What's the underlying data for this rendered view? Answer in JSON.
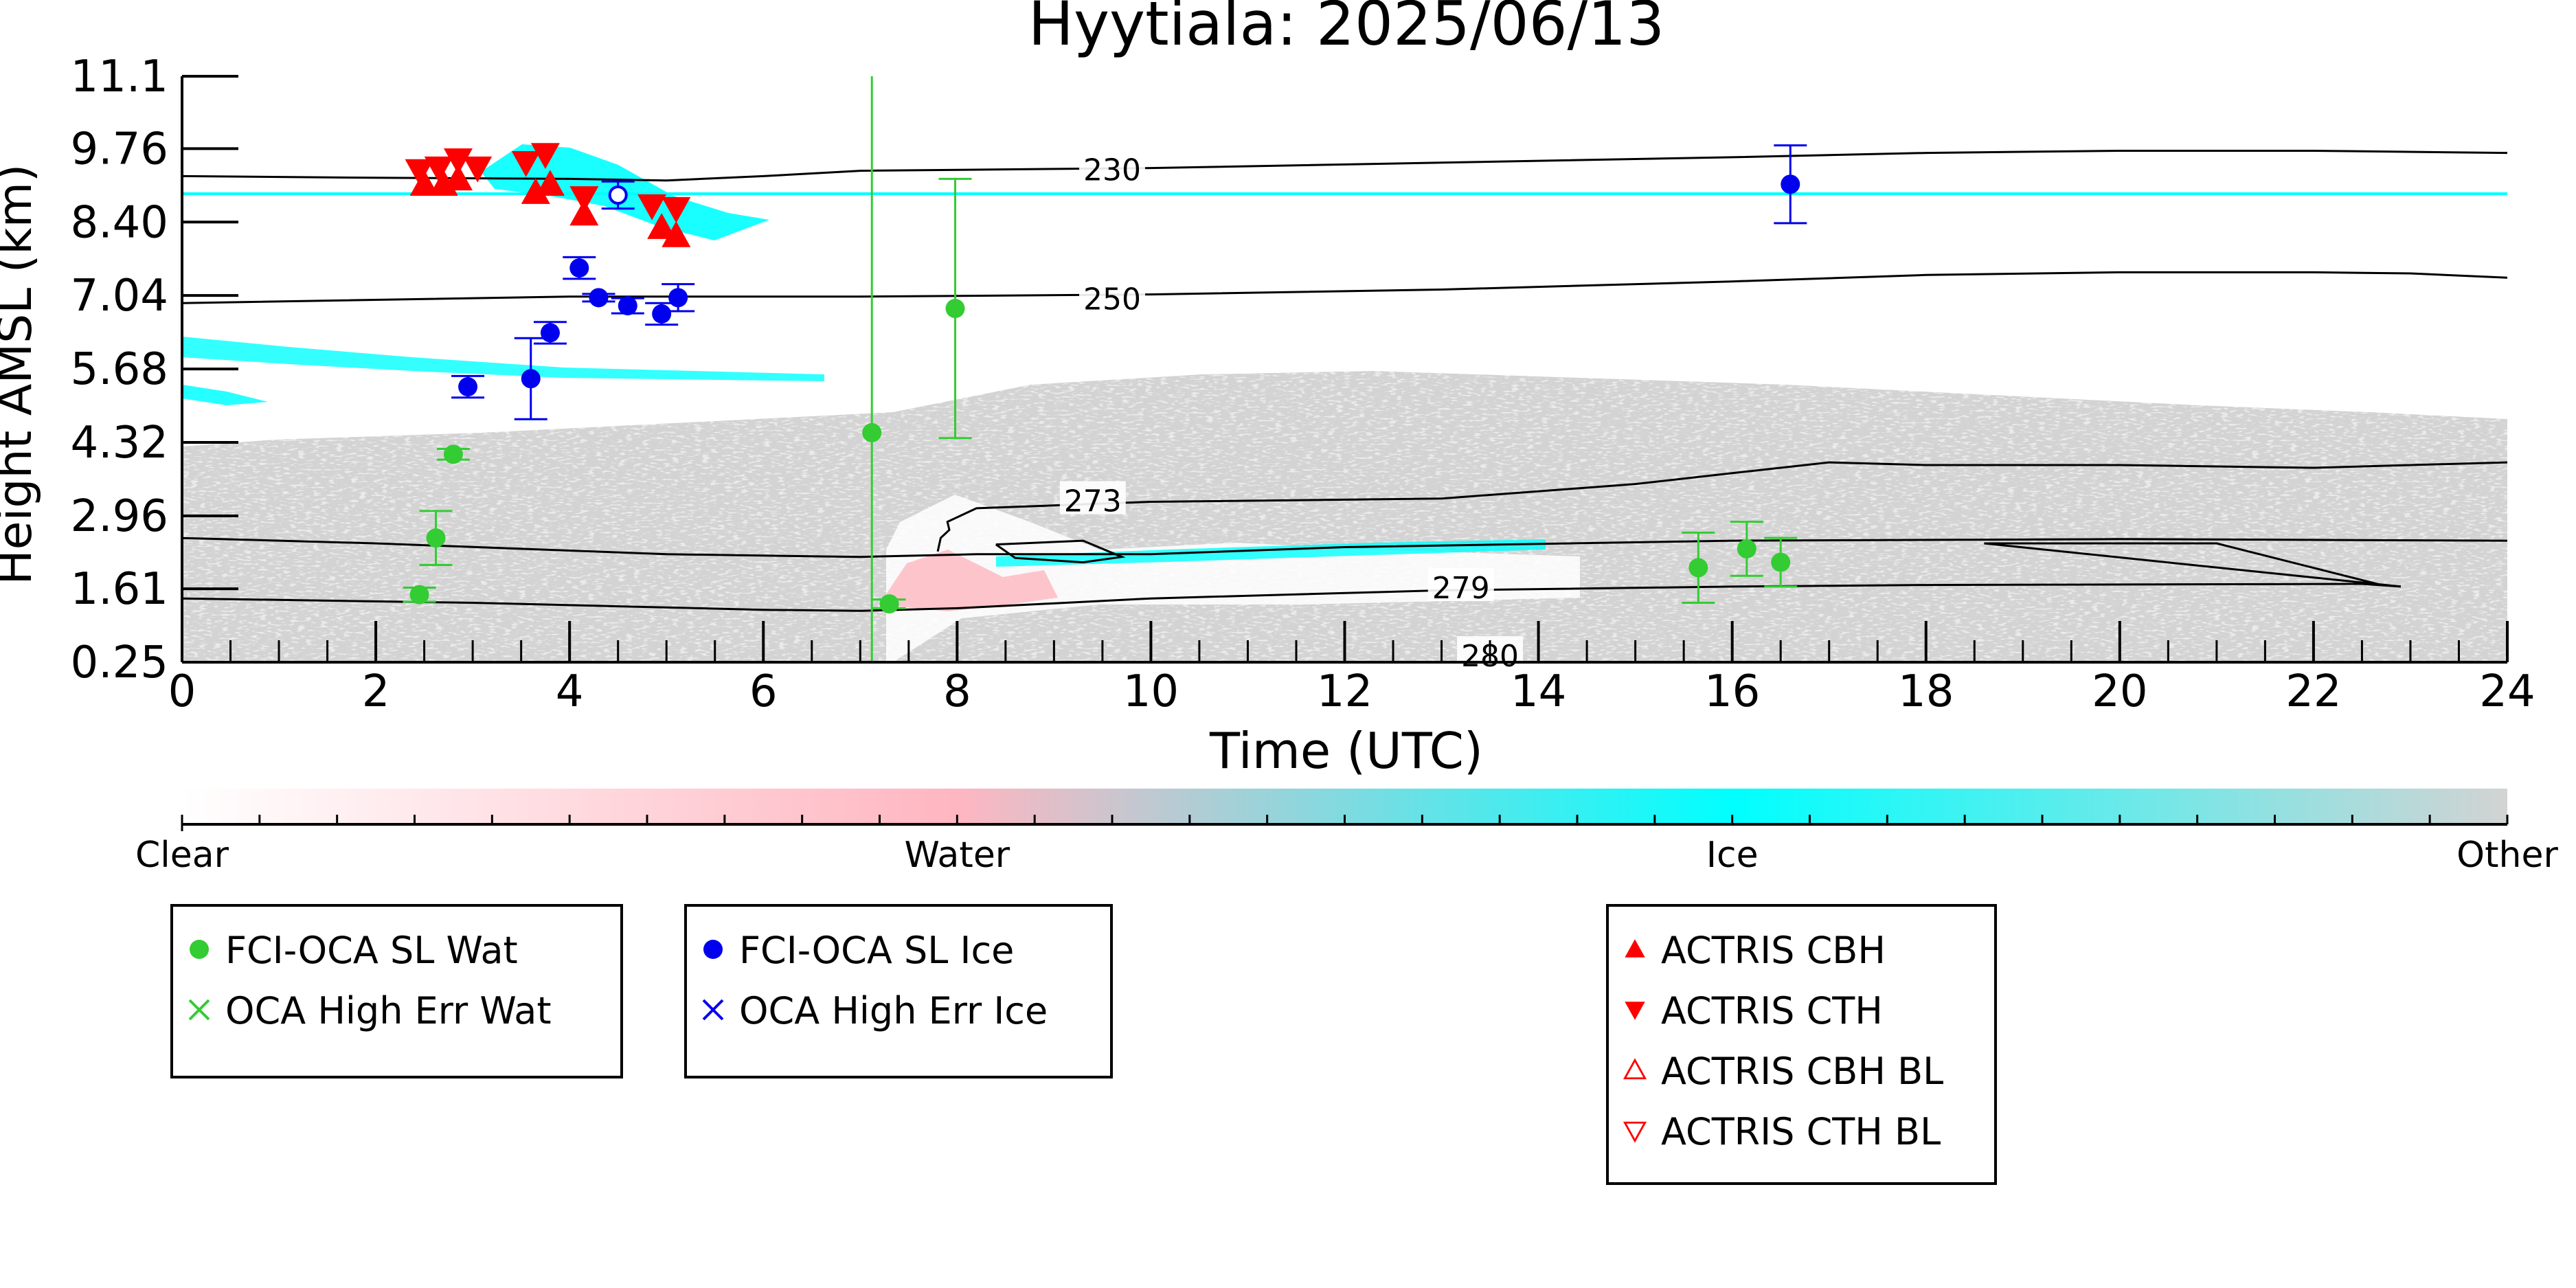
{
  "chart_data": {
    "type": "scatter",
    "title": "Hyytiala: 2025/06/13",
    "xlabel": "Time (UTC)",
    "ylabel": "Height AMSL (km)",
    "xlim": [
      0,
      24
    ],
    "ylim": [
      0.25,
      11.1
    ],
    "xticks": [
      0,
      2,
      4,
      6,
      8,
      10,
      12,
      14,
      16,
      18,
      20,
      22,
      24
    ],
    "yticks": [
      "0.25",
      "1.61",
      "2.96",
      "4.32",
      "5.68",
      "7.04",
      "8.40",
      "9.76",
      "11.1"
    ],
    "background": "cloud-phase classification field (clear / water / ice / other)",
    "colorbar": {
      "labels": [
        "Clear",
        "Water",
        "Ice",
        "Other"
      ],
      "colors": [
        "#ffffff",
        "#ffb6c1",
        "#00ffff",
        "#d3d3d3"
      ]
    },
    "temperature_contours": [
      {
        "label": "230",
        "label_x": 9.6,
        "label_y": 9.35,
        "points": [
          [
            0,
            9.25
          ],
          [
            2,
            9.22
          ],
          [
            4,
            9.2
          ],
          [
            5,
            9.17
          ],
          [
            6,
            9.25
          ],
          [
            7,
            9.35
          ],
          [
            10,
            9.4
          ],
          [
            13,
            9.5
          ],
          [
            16,
            9.6
          ],
          [
            18,
            9.68
          ],
          [
            20,
            9.72
          ],
          [
            22,
            9.72
          ],
          [
            24,
            9.68
          ]
        ]
      },
      {
        "label": "250",
        "label_x": 9.6,
        "label_y": 6.96,
        "points": [
          [
            0,
            6.9
          ],
          [
            4,
            7.02
          ],
          [
            7,
            7.02
          ],
          [
            10,
            7.06
          ],
          [
            13,
            7.15
          ],
          [
            16,
            7.3
          ],
          [
            18,
            7.42
          ],
          [
            20,
            7.47
          ],
          [
            22,
            7.47
          ],
          [
            23,
            7.45
          ],
          [
            24,
            7.37
          ]
        ]
      },
      {
        "label": "273",
        "label_x": 9.4,
        "label_y": 3.22,
        "points": [
          [
            7.8,
            2.3
          ],
          [
            7.83,
            2.55
          ],
          [
            7.92,
            2.7
          ],
          [
            7.9,
            2.85
          ],
          [
            8.2,
            3.1
          ],
          [
            10,
            3.22
          ],
          [
            13,
            3.28
          ],
          [
            15,
            3.55
          ],
          [
            16,
            3.75
          ],
          [
            17,
            3.95
          ],
          [
            18,
            3.9
          ],
          [
            20,
            3.9
          ],
          [
            22,
            3.85
          ],
          [
            23,
            3.9
          ],
          [
            24,
            3.95
          ]
        ]
      },
      {
        "label": "279",
        "label_x": 13.2,
        "label_y": 1.61,
        "points": [
          [
            0,
            1.43
          ],
          [
            3,
            1.35
          ],
          [
            6,
            1.22
          ],
          [
            7,
            1.2
          ],
          [
            8,
            1.25
          ],
          [
            10,
            1.43
          ],
          [
            13,
            1.58
          ],
          [
            16,
            1.65
          ],
          [
            18,
            1.68
          ],
          [
            22.5,
            1.7
          ],
          [
            22.9,
            1.65
          ]
        ]
      },
      {
        "label": "",
        "label_x": 0,
        "label_y": 0,
        "points": [
          [
            0,
            2.55
          ],
          [
            2,
            2.45
          ],
          [
            5,
            2.25
          ],
          [
            7,
            2.2
          ],
          [
            8.2,
            2.25
          ],
          [
            10,
            2.25
          ],
          [
            12,
            2.38
          ],
          [
            16,
            2.5
          ],
          [
            20,
            2.53
          ],
          [
            24,
            2.5
          ]
        ]
      },
      {
        "label": "280",
        "label_x": 13.5,
        "label_y": 0.35,
        "points": []
      }
    ],
    "contour_loops": [
      {
        "points": [
          [
            8.4,
            2.43
          ],
          [
            9.3,
            2.5
          ],
          [
            9.7,
            2.2
          ],
          [
            9.3,
            2.1
          ],
          [
            8.6,
            2.18
          ],
          [
            8.4,
            2.43
          ]
        ]
      },
      {
        "points": [
          [
            18.6,
            2.45
          ],
          [
            21,
            2.45
          ],
          [
            22.7,
            1.68
          ],
          [
            22.9,
            1.65
          ],
          [
            18.6,
            2.45
          ]
        ]
      }
    ],
    "series": [
      {
        "name": "FCI-OCA SL Wat",
        "color": "#33cc33",
        "marker": "filled-circle",
        "points": [
          {
            "x": 2.45,
            "y": 1.5,
            "err": 0.13
          },
          {
            "x": 2.62,
            "y": 2.55,
            "err": 0.5
          },
          {
            "x": 2.8,
            "y": 4.1,
            "err": 0.1
          },
          {
            "x": 7.12,
            "y": 4.5,
            "err": 0
          },
          {
            "x": 7.3,
            "y": 1.33,
            "err": 0.08
          },
          {
            "x": 7.98,
            "y": 6.8,
            "err": 2.4
          },
          {
            "x": 15.65,
            "y": 2.0,
            "err": 0.65
          },
          {
            "x": 16.15,
            "y": 2.35,
            "err": 0.5
          },
          {
            "x": 16.5,
            "y": 2.1,
            "err": 0.45
          }
        ]
      },
      {
        "name": "OCA High Err Wat",
        "color": "#33cc33",
        "marker": "x",
        "points": []
      },
      {
        "name": "FCI-OCA SL Ice",
        "color": "#0000ee",
        "marker": "filled-circle",
        "points": [
          {
            "x": 2.95,
            "y": 5.35,
            "err": 0.2
          },
          {
            "x": 3.6,
            "y": 5.5,
            "err": 0.75
          },
          {
            "x": 3.8,
            "y": 6.35,
            "err": 0.2
          },
          {
            "x": 4.1,
            "y": 7.55,
            "err": 0.2
          },
          {
            "x": 4.3,
            "y": 7.0,
            "err": 0.07
          },
          {
            "x": 4.6,
            "y": 6.85,
            "err": 0.14
          },
          {
            "x": 4.95,
            "y": 6.7,
            "err": 0.2
          },
          {
            "x": 5.12,
            "y": 7.0,
            "err": 0.25
          },
          {
            "x": 16.6,
            "y": 9.1,
            "err": 0.72
          }
        ]
      },
      {
        "name": "OCA High Err Ice",
        "color": "#0000ee",
        "marker": "x",
        "points": []
      },
      {
        "name": "ACTRIS CBH",
        "color": "#ff0000",
        "marker": "triangle-up",
        "points": [
          {
            "x": 2.5,
            "y": 9.1
          },
          {
            "x": 2.7,
            "y": 9.1
          },
          {
            "x": 2.85,
            "y": 9.2
          },
          {
            "x": 3.65,
            "y": 8.95
          },
          {
            "x": 3.8,
            "y": 9.1
          },
          {
            "x": 4.15,
            "y": 8.55
          },
          {
            "x": 4.95,
            "y": 8.3
          },
          {
            "x": 5.1,
            "y": 8.15
          }
        ]
      },
      {
        "name": "ACTRIS CTH",
        "color": "#ff0000",
        "marker": "triangle-down",
        "points": [
          {
            "x": 2.45,
            "y": 9.35
          },
          {
            "x": 2.65,
            "y": 9.4
          },
          {
            "x": 2.85,
            "y": 9.55
          },
          {
            "x": 3.05,
            "y": 9.4
          },
          {
            "x": 3.55,
            "y": 9.5
          },
          {
            "x": 3.75,
            "y": 9.65
          },
          {
            "x": 4.15,
            "y": 8.85
          },
          {
            "x": 4.85,
            "y": 8.7
          },
          {
            "x": 5.1,
            "y": 8.65
          }
        ]
      },
      {
        "name": "ACTRIS CBH BL",
        "color": "#ff0000",
        "marker": "open-triangle-up",
        "points": []
      },
      {
        "name": "ACTRIS CTH BL",
        "color": "#ff0000",
        "marker": "open-triangle-down",
        "points": []
      }
    ],
    "open_circle_points": [
      {
        "x": 4.5,
        "y": 8.9,
        "err": 0.25,
        "color": "#0000ee"
      }
    ],
    "vertical_lines": [
      {
        "x": 7.12,
        "color": "#33cc33"
      }
    ],
    "legends": [
      {
        "entries": [
          0,
          1
        ]
      },
      {
        "entries": [
          2,
          3
        ]
      },
      {
        "entries": [
          4,
          5,
          6,
          7
        ]
      }
    ]
  }
}
